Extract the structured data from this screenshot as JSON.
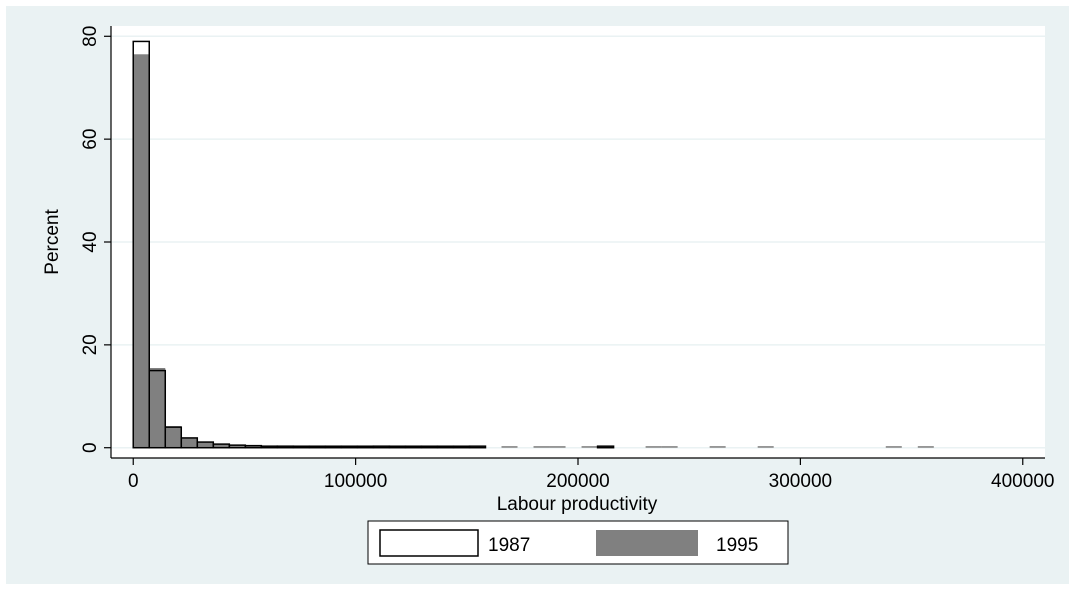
{
  "chart_data": {
    "type": "histogram",
    "xlabel": "Labour productivity",
    "ylabel": "Percent",
    "xlim": [
      -10000,
      410000
    ],
    "ylim": [
      -2,
      82
    ],
    "x_ticks": [
      {
        "value": 0,
        "label": "0"
      },
      {
        "value": 100000,
        "label": "100000"
      },
      {
        "value": 200000,
        "label": "200000"
      },
      {
        "value": 300000,
        "label": "300000"
      },
      {
        "value": 400000,
        "label": "400000"
      }
    ],
    "y_ticks": [
      {
        "value": 0,
        "label": "0"
      },
      {
        "value": 20,
        "label": "20"
      },
      {
        "value": 40,
        "label": "40"
      },
      {
        "value": 60,
        "label": "60"
      },
      {
        "value": 80,
        "label": "80"
      }
    ],
    "grid": true,
    "legend_position": "bottom",
    "bin_width": 7200,
    "series": [
      {
        "name": "1987",
        "style": "outline",
        "color": "#000000",
        "bins": [
          {
            "start": 0,
            "value": 79
          },
          {
            "start": 7200,
            "value": 15
          },
          {
            "start": 14400,
            "value": 4
          },
          {
            "start": 21600,
            "value": 1.9
          },
          {
            "start": 28800,
            "value": 1.1
          },
          {
            "start": 36000,
            "value": 0.7
          },
          {
            "start": 43200,
            "value": 0.5
          },
          {
            "start": 50400,
            "value": 0.4
          },
          {
            "start": 57600,
            "value": 0.3
          },
          {
            "start": 64800,
            "value": 0.3
          },
          {
            "start": 72000,
            "value": 0.2
          },
          {
            "start": 79200,
            "value": 0.2
          },
          {
            "start": 86400,
            "value": 0.2
          },
          {
            "start": 93600,
            "value": 0.2
          },
          {
            "start": 100800,
            "value": 0.2
          },
          {
            "start": 108000,
            "value": 0.3
          },
          {
            "start": 115200,
            "value": 0.2
          },
          {
            "start": 122400,
            "value": 0.2
          },
          {
            "start": 129600,
            "value": 0.2
          },
          {
            "start": 136800,
            "value": 0.2
          },
          {
            "start": 144000,
            "value": 0.2
          },
          {
            "start": 151200,
            "value": 0.3
          },
          {
            "start": 208800,
            "value": 0.3
          }
        ]
      },
      {
        "name": "1995",
        "style": "filled",
        "color": "#808080",
        "bins": [
          {
            "start": 0,
            "value": 76.5
          },
          {
            "start": 7200,
            "value": 15.5
          },
          {
            "start": 14400,
            "value": 4.2
          },
          {
            "start": 21600,
            "value": 2.0
          },
          {
            "start": 28800,
            "value": 1.2
          },
          {
            "start": 36000,
            "value": 0.8
          },
          {
            "start": 43200,
            "value": 0.6
          },
          {
            "start": 50400,
            "value": 0.5
          },
          {
            "start": 57600,
            "value": 0.3
          },
          {
            "start": 64800,
            "value": 0.4
          },
          {
            "start": 72000,
            "value": 0.3
          },
          {
            "start": 79200,
            "value": 0.3
          },
          {
            "start": 86400,
            "value": 0.3
          },
          {
            "start": 93600,
            "value": 0.3
          },
          {
            "start": 100800,
            "value": 0.3
          },
          {
            "start": 108000,
            "value": 0.3
          },
          {
            "start": 115200,
            "value": 0.3
          },
          {
            "start": 122400,
            "value": 0.3
          },
          {
            "start": 129600,
            "value": 0.3
          },
          {
            "start": 136800,
            "value": 0.3
          },
          {
            "start": 144000,
            "value": 0.3
          },
          {
            "start": 165600,
            "value": 0.3
          },
          {
            "start": 180000,
            "value": 0.3
          },
          {
            "start": 187200,
            "value": 0.3
          },
          {
            "start": 201600,
            "value": 0.3
          },
          {
            "start": 230400,
            "value": 0.3
          },
          {
            "start": 237600,
            "value": 0.3
          },
          {
            "start": 259200,
            "value": 0.3
          },
          {
            "start": 280800,
            "value": 0.3
          },
          {
            "start": 338400,
            "value": 0.3
          },
          {
            "start": 352800,
            "value": 0.3
          }
        ]
      }
    ]
  }
}
